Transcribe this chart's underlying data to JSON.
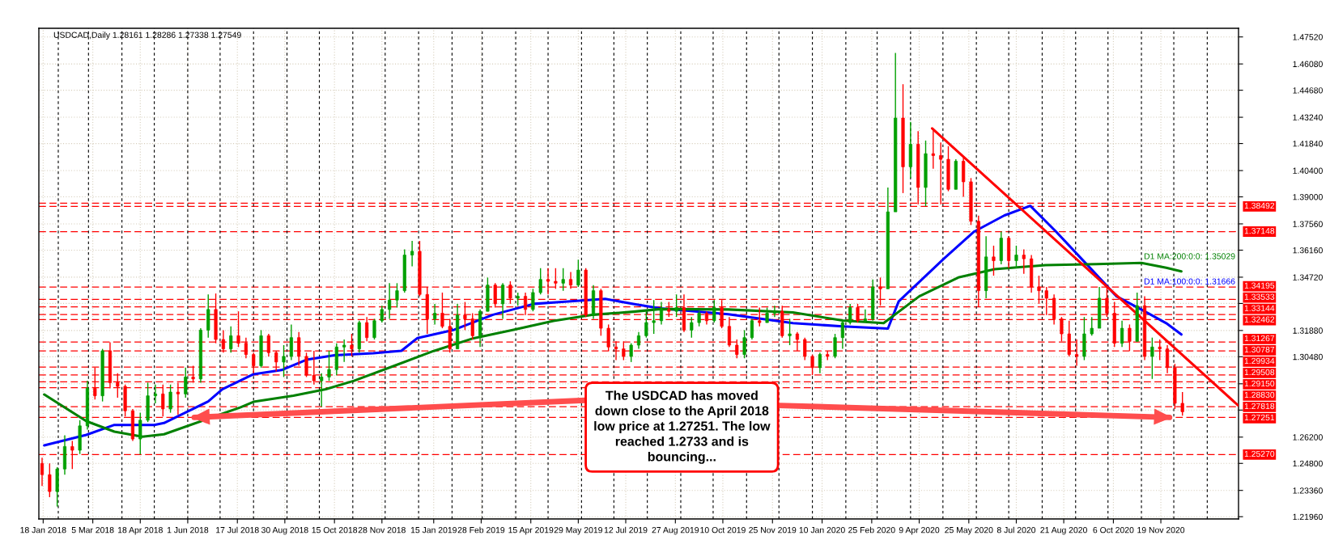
{
  "chart_data": {
    "type": "candlestick",
    "title": "USDCAD,Daily 1.28161 1.28286 1.27338 1.27549",
    "x": [
      "2018-01-17",
      "2018-01-24",
      "2018-01-31",
      "2018-02-07",
      "2018-02-14",
      "2018-02-21",
      "2018-02-28",
      "2018-03-07",
      "2018-03-14",
      "2018-03-21",
      "2018-03-28",
      "2018-04-04",
      "2018-04-11",
      "2018-04-18",
      "2018-04-25",
      "2018-05-02",
      "2018-05-09",
      "2018-05-16",
      "2018-05-23",
      "2018-05-30",
      "2018-06-06",
      "2018-06-13",
      "2018-06-20",
      "2018-06-27",
      "2018-07-04",
      "2018-07-11",
      "2018-07-18",
      "2018-07-25",
      "2018-08-01",
      "2018-08-08",
      "2018-08-15",
      "2018-08-22",
      "2018-08-29",
      "2018-09-05",
      "2018-09-12",
      "2018-09-19",
      "2018-09-26",
      "2018-10-03",
      "2018-10-10",
      "2018-10-17",
      "2018-10-24",
      "2018-10-31",
      "2018-11-07",
      "2018-11-14",
      "2018-11-21",
      "2018-11-28",
      "2018-12-05",
      "2018-12-12",
      "2018-12-19",
      "2018-12-26",
      "2019-01-02",
      "2019-01-09",
      "2019-01-16",
      "2019-01-23",
      "2019-01-30",
      "2019-02-06",
      "2019-02-13",
      "2019-02-20",
      "2019-02-27",
      "2019-03-06",
      "2019-03-13",
      "2019-03-20",
      "2019-03-27",
      "2019-04-03",
      "2019-04-10",
      "2019-04-17",
      "2019-04-24",
      "2019-05-01",
      "2019-05-08",
      "2019-05-15",
      "2019-05-22",
      "2019-05-29",
      "2019-06-05",
      "2019-06-12",
      "2019-06-19",
      "2019-06-26",
      "2019-07-03",
      "2019-07-10",
      "2019-07-17",
      "2019-07-24",
      "2019-07-31",
      "2019-08-07",
      "2019-08-14",
      "2019-08-21",
      "2019-08-28",
      "2019-09-04",
      "2019-09-11",
      "2019-09-18",
      "2019-09-25",
      "2019-10-02",
      "2019-10-09",
      "2019-10-16",
      "2019-10-23",
      "2019-10-30",
      "2019-11-06",
      "2019-11-13",
      "2019-11-20",
      "2019-11-27",
      "2019-12-04",
      "2019-12-11",
      "2019-12-18",
      "2019-12-25",
      "2020-01-01",
      "2020-01-08",
      "2020-01-15",
      "2020-01-22",
      "2020-01-29",
      "2020-02-05",
      "2020-02-12",
      "2020-02-19",
      "2020-02-26",
      "2020-03-04",
      "2020-03-11",
      "2020-03-18",
      "2020-03-25",
      "2020-04-01",
      "2020-04-08",
      "2020-04-15",
      "2020-04-22",
      "2020-04-29",
      "2020-05-06",
      "2020-05-13",
      "2020-05-20",
      "2020-05-27",
      "2020-06-03",
      "2020-06-10",
      "2020-06-17",
      "2020-06-24",
      "2020-07-01",
      "2020-07-08",
      "2020-07-15",
      "2020-07-22",
      "2020-07-29",
      "2020-08-05",
      "2020-08-12",
      "2020-08-19",
      "2020-08-26",
      "2020-09-02",
      "2020-09-09",
      "2020-09-16",
      "2020-09-23",
      "2020-09-30",
      "2020-10-07",
      "2020-10-14",
      "2020-10-21",
      "2020-10-28",
      "2020-11-04",
      "2020-11-11",
      "2020-11-18",
      "2020-11-25",
      "2020-12-02",
      "2020-12-09"
    ],
    "ohlc": [
      [
        1.248,
        1.251,
        1.236,
        1.242
      ],
      [
        1.242,
        1.248,
        1.23,
        1.233
      ],
      [
        1.233,
        1.246,
        1.225,
        1.245
      ],
      [
        1.245,
        1.263,
        1.242,
        1.257
      ],
      [
        1.257,
        1.26,
        1.245,
        1.255
      ],
      [
        1.255,
        1.271,
        1.253,
        1.268
      ],
      [
        1.268,
        1.292,
        1.266,
        1.288
      ],
      [
        1.288,
        1.299,
        1.282,
        1.284
      ],
      [
        1.284,
        1.309,
        1.281,
        1.308
      ],
      [
        1.308,
        1.3125,
        1.288,
        1.291
      ],
      [
        1.291,
        1.296,
        1.283,
        1.289
      ],
      [
        1.289,
        1.29,
        1.273,
        1.276
      ],
      [
        1.276,
        1.277,
        1.26,
        1.261
      ],
      [
        1.261,
        1.275,
        1.2527,
        1.271
      ],
      [
        1.271,
        1.291,
        1.27,
        1.284
      ],
      [
        1.284,
        1.29,
        1.28,
        1.285
      ],
      [
        1.285,
        1.29,
        1.273,
        1.277
      ],
      [
        1.277,
        1.29,
        1.275,
        1.286
      ],
      [
        1.286,
        1.291,
        1.274,
        1.285
      ],
      [
        1.285,
        1.299,
        1.283,
        1.294
      ],
      [
        1.294,
        1.3,
        1.291,
        1.293
      ],
      [
        1.293,
        1.32,
        1.291,
        1.319
      ],
      [
        1.319,
        1.338,
        1.315,
        1.33
      ],
      [
        1.33,
        1.3385,
        1.312,
        1.314
      ],
      [
        1.314,
        1.319,
        1.307,
        1.309
      ],
      [
        1.309,
        1.321,
        1.307,
        1.316
      ],
      [
        1.316,
        1.329,
        1.31,
        1.312
      ],
      [
        1.312,
        1.315,
        1.304,
        1.306
      ],
      [
        1.306,
        1.307,
        1.296,
        1.3
      ],
      [
        1.3,
        1.319,
        1.299,
        1.316
      ],
      [
        1.316,
        1.317,
        1.305,
        1.307
      ],
      [
        1.307,
        1.308,
        1.297,
        1.302
      ],
      [
        1.302,
        1.311,
        1.294,
        1.305
      ],
      [
        1.305,
        1.322,
        1.303,
        1.315
      ],
      [
        1.315,
        1.318,
        1.3,
        1.305
      ],
      [
        1.305,
        1.307,
        1.294,
        1.295
      ],
      [
        1.295,
        1.308,
        1.29,
        1.292
      ],
      [
        1.292,
        1.296,
        1.2782,
        1.294
      ],
      [
        1.294,
        1.308,
        1.292,
        1.298
      ],
      [
        1.298,
        1.312,
        1.295,
        1.31
      ],
      [
        1.31,
        1.314,
        1.302,
        1.311
      ],
      [
        1.311,
        1.317,
        1.305,
        1.309
      ],
      [
        1.309,
        1.324,
        1.307,
        1.323
      ],
      [
        1.323,
        1.326,
        1.313,
        1.315
      ],
      [
        1.315,
        1.325,
        1.314,
        1.324
      ],
      [
        1.324,
        1.332,
        1.323,
        1.33
      ],
      [
        1.33,
        1.344,
        1.325,
        1.335
      ],
      [
        1.335,
        1.344,
        1.331,
        1.34
      ],
      [
        1.34,
        1.362,
        1.339,
        1.359
      ],
      [
        1.359,
        1.3665,
        1.353,
        1.361
      ],
      [
        1.361,
        1.3665,
        1.337,
        1.338
      ],
      [
        1.338,
        1.342,
        1.317,
        1.325
      ],
      [
        1.325,
        1.333,
        1.322,
        1.328
      ],
      [
        1.328,
        1.339,
        1.32,
        1.321
      ],
      [
        1.321,
        1.325,
        1.307,
        1.309
      ],
      [
        1.309,
        1.333,
        1.309,
        1.327
      ],
      [
        1.327,
        1.334,
        1.319,
        1.325
      ],
      [
        1.325,
        1.328,
        1.314,
        1.316
      ],
      [
        1.316,
        1.33,
        1.31,
        1.329
      ],
      [
        1.329,
        1.347,
        1.329,
        1.343
      ],
      [
        1.343,
        1.344,
        1.331,
        1.333
      ],
      [
        1.333,
        1.344,
        1.325,
        1.343
      ],
      [
        1.343,
        1.345,
        1.333,
        1.336
      ],
      [
        1.336,
        1.339,
        1.332,
        1.337
      ],
      [
        1.337,
        1.339,
        1.327,
        1.33
      ],
      [
        1.33,
        1.341,
        1.329,
        1.339
      ],
      [
        1.339,
        1.352,
        1.338,
        1.346
      ],
      [
        1.346,
        1.352,
        1.338,
        1.345
      ],
      [
        1.345,
        1.352,
        1.341,
        1.344
      ],
      [
        1.344,
        1.352,
        1.34,
        1.346
      ],
      [
        1.346,
        1.35,
        1.341,
        1.343
      ],
      [
        1.343,
        1.3565,
        1.342,
        1.351
      ],
      [
        1.351,
        1.352,
        1.326,
        1.327
      ],
      [
        1.327,
        1.343,
        1.325,
        1.34
      ],
      [
        1.34,
        1.341,
        1.316,
        1.32
      ],
      [
        1.32,
        1.322,
        1.308,
        1.31
      ],
      [
        1.31,
        1.313,
        1.303,
        1.309
      ],
      [
        1.309,
        1.313,
        1.303,
        1.305
      ],
      [
        1.305,
        1.312,
        1.302,
        1.311
      ],
      [
        1.311,
        1.318,
        1.309,
        1.316
      ],
      [
        1.316,
        1.329,
        1.315,
        1.323
      ],
      [
        1.323,
        1.335,
        1.317,
        1.324
      ],
      [
        1.324,
        1.334,
        1.322,
        1.33
      ],
      [
        1.33,
        1.334,
        1.326,
        1.329
      ],
      [
        1.329,
        1.338,
        1.326,
        1.331
      ],
      [
        1.331,
        1.338,
        1.318,
        1.319
      ],
      [
        1.319,
        1.326,
        1.315,
        1.323
      ],
      [
        1.323,
        1.329,
        1.321,
        1.328
      ],
      [
        1.328,
        1.329,
        1.322,
        1.324
      ],
      [
        1.324,
        1.335,
        1.323,
        1.331
      ],
      [
        1.331,
        1.335,
        1.32,
        1.321
      ],
      [
        1.321,
        1.326,
        1.31,
        1.311
      ],
      [
        1.311,
        1.314,
        1.304,
        1.306
      ],
      [
        1.306,
        1.319,
        1.304,
        1.315
      ],
      [
        1.315,
        1.325,
        1.314,
        1.324
      ],
      [
        1.324,
        1.331,
        1.321,
        1.323
      ],
      [
        1.323,
        1.331,
        1.323,
        1.328
      ],
      [
        1.328,
        1.332,
        1.326,
        1.329
      ],
      [
        1.329,
        1.332,
        1.315,
        1.316
      ],
      [
        1.316,
        1.325,
        1.311,
        1.317
      ],
      [
        1.317,
        1.318,
        1.308,
        1.314
      ],
      [
        1.314,
        1.315,
        1.303,
        1.305
      ],
      [
        1.305,
        1.306,
        1.295,
        1.299
      ],
      [
        1.299,
        1.307,
        1.296,
        1.306
      ],
      [
        1.306,
        1.308,
        1.303,
        1.305
      ],
      [
        1.305,
        1.317,
        1.304,
        1.315
      ],
      [
        1.315,
        1.324,
        1.309,
        1.323
      ],
      [
        1.323,
        1.333,
        1.322,
        1.331
      ],
      [
        1.331,
        1.333,
        1.323,
        1.324
      ],
      [
        1.324,
        1.33,
        1.323,
        1.325
      ],
      [
        1.325,
        1.346,
        1.324,
        1.342
      ],
      [
        1.342,
        1.347,
        1.332,
        1.341
      ],
      [
        1.341,
        1.395,
        1.341,
        1.382
      ],
      [
        1.382,
        1.4667,
        1.382,
        1.432
      ],
      [
        1.432,
        1.45,
        1.392,
        1.406
      ],
      [
        1.406,
        1.43,
        1.4,
        1.418
      ],
      [
        1.418,
        1.425,
        1.386,
        1.395
      ],
      [
        1.395,
        1.42,
        1.385,
        1.413
      ],
      [
        1.413,
        1.4265,
        1.405,
        1.412
      ],
      [
        1.412,
        1.419,
        1.386,
        1.41
      ],
      [
        1.41,
        1.417,
        1.393,
        1.394
      ],
      [
        1.394,
        1.41,
        1.394,
        1.409
      ],
      [
        1.409,
        1.411,
        1.39,
        1.398
      ],
      [
        1.398,
        1.4,
        1.375,
        1.377
      ],
      [
        1.377,
        1.38,
        1.3315,
        1.34
      ],
      [
        1.34,
        1.369,
        1.336,
        1.358
      ],
      [
        1.358,
        1.364,
        1.348,
        1.356
      ],
      [
        1.356,
        1.3715,
        1.354,
        1.368
      ],
      [
        1.368,
        1.369,
        1.352,
        1.356
      ],
      [
        1.356,
        1.364,
        1.352,
        1.359
      ],
      [
        1.359,
        1.362,
        1.349,
        1.357
      ],
      [
        1.357,
        1.359,
        1.339,
        1.342
      ],
      [
        1.342,
        1.348,
        1.333,
        1.34
      ],
      [
        1.34,
        1.342,
        1.327,
        1.336
      ],
      [
        1.336,
        1.338,
        1.322,
        1.325
      ],
      [
        1.325,
        1.326,
        1.313,
        1.317
      ],
      [
        1.317,
        1.324,
        1.305,
        1.306
      ],
      [
        1.306,
        1.314,
        1.3,
        1.305
      ],
      [
        1.305,
        1.326,
        1.303,
        1.317
      ],
      [
        1.317,
        1.326,
        1.316,
        1.32
      ],
      [
        1.32,
        1.342,
        1.32,
        1.336
      ],
      [
        1.336,
        1.342,
        1.326,
        1.328
      ],
      [
        1.328,
        1.334,
        1.31,
        1.312
      ],
      [
        1.312,
        1.324,
        1.31,
        1.32
      ],
      [
        1.32,
        1.322,
        1.308,
        1.313
      ],
      [
        1.313,
        1.339,
        1.313,
        1.332
      ],
      [
        1.332,
        1.337,
        1.303,
        1.305
      ],
      [
        1.305,
        1.315,
        1.293,
        1.31
      ],
      [
        1.31,
        1.314,
        1.303,
        1.309
      ],
      [
        1.309,
        1.311,
        1.296,
        1.299
      ],
      [
        1.299,
        1.301,
        1.277,
        1.28
      ],
      [
        1.28,
        1.286,
        1.2734,
        1.2755
      ]
    ],
    "colors": [
      "#ff0000",
      "#ff0000",
      "#00a000",
      "#00a000",
      "#ff0000",
      "#00a000",
      "#00a000",
      "#ff0000",
      "#00a000",
      "#ff0000",
      "#ff0000",
      "#ff0000",
      "#ff0000",
      "#00a000",
      "#00a000",
      "#00a000",
      "#ff0000",
      "#00a000",
      "#ff0000",
      "#00a000",
      "#ff0000",
      "#00a000",
      "#00a000",
      "#ff0000",
      "#ff0000",
      "#00a000",
      "#ff0000",
      "#ff0000",
      "#ff0000",
      "#00a000",
      "#ff0000",
      "#ff0000",
      "#00a000",
      "#00a000",
      "#ff0000",
      "#ff0000",
      "#ff0000",
      "#00a000",
      "#00a000",
      "#00a000",
      "#00a000",
      "#ff0000",
      "#00a000",
      "#ff0000",
      "#00a000",
      "#00a000",
      "#00a000",
      "#00a000",
      "#00a000",
      "#00a000",
      "#ff0000",
      "#ff0000",
      "#00a000",
      "#ff0000",
      "#ff0000",
      "#00a000",
      "#ff0000",
      "#ff0000",
      "#00a000",
      "#00a000",
      "#ff0000",
      "#00a000",
      "#ff0000",
      "#00a000",
      "#ff0000",
      "#00a000",
      "#00a000",
      "#ff0000",
      "#ff0000",
      "#00a000",
      "#ff0000",
      "#00a000",
      "#ff0000",
      "#00a000",
      "#ff0000",
      "#ff0000",
      "#ff0000",
      "#ff0000",
      "#00a000",
      "#00a000",
      "#00a000",
      "#00a000",
      "#00a000",
      "#ff0000",
      "#00a000",
      "#ff0000",
      "#00a000",
      "#00a000",
      "#ff0000",
      "#00a000",
      "#ff0000",
      "#ff0000",
      "#ff0000",
      "#00a000",
      "#00a000",
      "#ff0000",
      "#00a000",
      "#00a000",
      "#ff0000",
      "#00a000",
      "#ff0000",
      "#ff0000",
      "#ff0000",
      "#00a000",
      "#ff0000",
      "#00a000",
      "#00a000",
      "#00a000",
      "#ff0000",
      "#00a000",
      "#00a000",
      "#ff0000",
      "#00a000",
      "#00a000",
      "#ff0000",
      "#00a000",
      "#ff0000",
      "#00a000",
      "#ff0000",
      "#ff0000",
      "#ff0000",
      "#00a000",
      "#ff0000",
      "#ff0000",
      "#ff0000",
      "#00a000",
      "#ff0000",
      "#00a000",
      "#ff0000",
      "#00a000",
      "#ff0000",
      "#ff0000",
      "#ff0000",
      "#ff0000",
      "#ff0000",
      "#ff0000",
      "#ff0000",
      "#ff0000",
      "#00a000",
      "#00a000",
      "#00a000",
      "#ff0000",
      "#ff0000",
      "#00a000",
      "#ff0000",
      "#00a000",
      "#ff0000",
      "#00a000",
      "#ff0000",
      "#ff0000",
      "#ff0000",
      "#ff0000"
    ],
    "series": [
      {
        "name": "D1 MA:100:0:0: 1.31666",
        "type": "line",
        "color": "#0000ff",
        "x": [
          "2018-01-19",
          "2018-02-27",
          "2018-03-25",
          "2018-05-01",
          "2018-05-10",
          "2018-06-20",
          "2018-07-03",
          "2018-08-01",
          "2018-08-27",
          "2018-09-19",
          "2018-10-15",
          "2018-11-20",
          "2018-12-16",
          "2018-12-31",
          "2019-02-03",
          "2019-03-11",
          "2019-04-18",
          "2019-05-14",
          "2019-06-23",
          "2019-07-19",
          "2019-08-13",
          "2019-10-15",
          "2019-12-14",
          "2020-01-29",
          "2020-03-11",
          "2020-03-21",
          "2020-05-02",
          "2020-05-30",
          "2020-06-27",
          "2020-07-21",
          "2020-08-14",
          "2020-09-11",
          "2020-10-09",
          "2020-11-06",
          "2020-11-24",
          "2020-12-08"
        ],
        "values": [
          1.2576,
          1.2632,
          1.2685,
          1.2685,
          1.2695,
          1.281,
          1.2875,
          1.2955,
          1.2977,
          1.3032,
          1.3056,
          1.3067,
          1.308,
          1.3148,
          1.3192,
          1.3272,
          1.333,
          1.334,
          1.3356,
          1.333,
          1.3306,
          1.3275,
          1.3227,
          1.321,
          1.3198,
          1.3343,
          1.3571,
          1.3715,
          1.3801,
          1.3852,
          1.3714,
          1.3542,
          1.337,
          1.3284,
          1.3227,
          1.31666
        ]
      },
      {
        "name": "D1 MA:200:0:0: 1.35029",
        "type": "line",
        "color": "#008000",
        "x": [
          "2018-01-19",
          "2018-02-27",
          "2018-03-25",
          "2018-04-20",
          "2018-05-10",
          "2018-07-20",
          "2018-08-01",
          "2018-09-07",
          "2018-10-07",
          "2018-11-02",
          "2018-12-09",
          "2019-01-15",
          "2019-02-21",
          "2019-03-30",
          "2019-05-06",
          "2019-06-12",
          "2019-07-19",
          "2019-08-13",
          "2019-10-15",
          "2019-12-14",
          "2020-01-29",
          "2020-03-07",
          "2020-04-09",
          "2020-05-16",
          "2020-06-18",
          "2020-08-04",
          "2020-09-20",
          "2020-11-01",
          "2020-11-24",
          "2020-12-08"
        ],
        "values": [
          1.2847,
          1.2705,
          1.2649,
          1.2622,
          1.2635,
          1.2779,
          1.2808,
          1.2841,
          1.2875,
          1.292,
          1.2999,
          1.3079,
          1.3147,
          1.3192,
          1.3239,
          1.3272,
          1.3288,
          1.3302,
          1.33,
          1.3284,
          1.3241,
          1.3227,
          1.337,
          1.3472,
          1.3515,
          1.3536,
          1.3542,
          1.3548,
          1.3522,
          1.35029
        ]
      },
      {
        "type": "line",
        "color": "#ff0000",
        "x": [
          "2020-04-21",
          "2021-01-30"
        ],
        "values": [
          1.4265,
          1.2787
        ]
      }
    ],
    "xlim": [
      "2018-01-14",
      "2021-01-30"
    ],
    "xticks": [
      {
        "value": "2018-01-18",
        "label": "18 Jan 2018"
      },
      {
        "value": "2018-03-05",
        "label": "5 Mar 2018"
      },
      {
        "value": "2018-04-18",
        "label": "18 Apr 2018"
      },
      {
        "value": "2018-06-01",
        "label": "1 Jun 2018"
      },
      {
        "value": "2018-07-17",
        "label": "17 Jul 2018"
      },
      {
        "value": "2018-08-30",
        "label": "30 Aug 2018"
      },
      {
        "value": "2018-10-15",
        "label": "15 Oct 2018"
      },
      {
        "value": "2018-11-28",
        "label": "28 Nov 2018"
      },
      {
        "value": "2019-01-15",
        "label": "15 Jan 2019"
      },
      {
        "value": "2019-02-28",
        "label": "28 Feb 2019"
      },
      {
        "value": "2019-04-15",
        "label": "15 Apr 2019"
      },
      {
        "value": "2019-05-29",
        "label": "29 May 2019"
      },
      {
        "value": "2019-07-12",
        "label": "12 Jul 2019"
      },
      {
        "value": "2019-08-27",
        "label": "27 Aug 2019"
      },
      {
        "value": "2019-10-10",
        "label": "10 Oct 2019"
      },
      {
        "value": "2019-11-25",
        "label": "25 Nov 2019"
      },
      {
        "value": "2020-01-10",
        "label": "10 Jan 2020"
      },
      {
        "value": "2020-02-25",
        "label": "25 Feb 2020"
      },
      {
        "value": "2020-04-09",
        "label": "9 Apr 2020"
      },
      {
        "value": "2020-05-25",
        "label": "25 May 2020"
      },
      {
        "value": "2020-07-08",
        "label": "8 Jul 2020"
      },
      {
        "value": "2020-08-21",
        "label": "21 Aug 2020"
      },
      {
        "value": "2020-10-06",
        "label": "6 Oct 2020"
      },
      {
        "value": "2020-11-19",
        "label": "19 Nov 2020"
      }
    ],
    "ylim": [
      1.2184,
      1.4798
    ],
    "yticks": [
      {
        "value": 1.4752,
        "label": "1.47520"
      },
      {
        "value": 1.4608,
        "label": "1.46080"
      },
      {
        "value": 1.4468,
        "label": "1.44680"
      },
      {
        "value": 1.4324,
        "label": "1.43240"
      },
      {
        "value": 1.4184,
        "label": "1.41840"
      },
      {
        "value": 1.404,
        "label": "1.40400"
      },
      {
        "value": 1.39,
        "label": "1.39000"
      },
      {
        "value": 1.3756,
        "label": "1.37560"
      },
      {
        "value": 1.3616,
        "label": "1.36160"
      },
      {
        "value": 1.3472,
        "label": "1.34720"
      },
      {
        "value": 1.3332,
        "label": null
      },
      {
        "value": 1.3188,
        "label": "1.31880"
      },
      {
        "value": 1.3048,
        "label": "1.30480"
      },
      {
        "value": 1.2904,
        "label": null
      },
      {
        "value": 1.2764,
        "label": null
      },
      {
        "value": 1.262,
        "label": "1.26200"
      },
      {
        "value": 1.248,
        "label": "1.24800"
      },
      {
        "value": 1.2336,
        "label": "1.23360"
      },
      {
        "value": 1.2196,
        "label": "1.21960"
      }
    ],
    "ref_lines": [
      {
        "axis": "y",
        "value": 1.3866,
        "label": null,
        "color": "#ff0000",
        "line_style": "dashed"
      },
      {
        "axis": "y",
        "value": 1.38492,
        "label": "1.38492",
        "color": "#ff0000",
        "line_style": "dashed"
      },
      {
        "axis": "y",
        "value": 1.37148,
        "label": "1.37148",
        "color": "#ff0000",
        "line_style": "dashed"
      },
      {
        "axis": "y",
        "value": 1.34195,
        "label": "1.34195",
        "color": "#ff0000",
        "line_style": "dashed"
      },
      {
        "axis": "y",
        "value": 1.33533,
        "label": "1.33533",
        "color": "#ff0000",
        "line_style": "dashed"
      },
      {
        "axis": "y",
        "value": 1.33144,
        "label": "1.33144",
        "color": "#ff0000",
        "line_style": "dashed"
      },
      {
        "axis": "y",
        "value": 1.3273,
        "label": null,
        "color": "#ff0000",
        "line_style": "dashed"
      },
      {
        "axis": "y",
        "value": 1.32462,
        "label": "1.32462",
        "color": "#ff0000",
        "line_style": "dashed"
      },
      {
        "axis": "y",
        "value": 1.31267,
        "label": "1.31267",
        "color": "#ff0000",
        "line_style": "dashed"
      },
      {
        "axis": "y",
        "value": 1.30787,
        "label": "1.30787",
        "color": "#ff0000",
        "line_style": "dashed"
      },
      {
        "axis": "y",
        "value": 1.29934,
        "label": "1.29934",
        "color": "#ff0000",
        "line_style": "dashed"
      },
      {
        "axis": "y",
        "value": 1.29508,
        "label": "1.29508",
        "color": "#ff0000",
        "line_style": "dashed"
      },
      {
        "axis": "y",
        "value": 1.2915,
        "label": "1.29150",
        "color": "#ff0000",
        "line_style": "dashed"
      },
      {
        "axis": "y",
        "value": 1.2883,
        "label": "1.28830",
        "color": "#ff0000",
        "line_style": "dashed"
      },
      {
        "axis": "y",
        "value": 1.27818,
        "label": "1.27818",
        "color": "#ff0000",
        "line_style": "dashed"
      },
      {
        "axis": "y",
        "value": 1.27251,
        "label": "1.27251",
        "color": "#ff0000",
        "line_style": "dashed"
      },
      {
        "axis": "y",
        "value": 1.2527,
        "label": "1.25270",
        "color": "#ff0000",
        "line_style": "dashed"
      },
      {
        "axis": "x",
        "value": "2018-02-01",
        "color": "#000000",
        "line_style": "dashed"
      },
      {
        "axis": "x",
        "value": "2018-03-01",
        "color": "#000000",
        "line_style": "dashed"
      },
      {
        "axis": "x",
        "value": "2018-04-01",
        "color": "#000000",
        "line_style": "dashed"
      },
      {
        "axis": "x",
        "value": "2018-05-01",
        "color": "#000000",
        "line_style": "dashed"
      },
      {
        "axis": "x",
        "value": "2018-06-01",
        "color": "#000000",
        "line_style": "dashed"
      },
      {
        "axis": "x",
        "value": "2018-07-01",
        "color": "#000000",
        "line_style": "dashed"
      },
      {
        "axis": "x",
        "value": "2018-08-01",
        "color": "#000000",
        "line_style": "dashed"
      },
      {
        "axis": "x",
        "value": "2018-09-01",
        "color": "#000000",
        "line_style": "dashed"
      },
      {
        "axis": "x",
        "value": "2018-10-01",
        "color": "#000000",
        "line_style": "dashed"
      },
      {
        "axis": "x",
        "value": "2018-11-01",
        "color": "#000000",
        "line_style": "dashed"
      },
      {
        "axis": "x",
        "value": "2018-12-01",
        "color": "#000000",
        "line_style": "dashed"
      },
      {
        "axis": "x",
        "value": "2019-01-01",
        "color": "#000000",
        "line_style": "dashed"
      },
      {
        "axis": "x",
        "value": "2019-02-01",
        "color": "#000000",
        "line_style": "dashed"
      },
      {
        "axis": "x",
        "value": "2019-03-01",
        "color": "#000000",
        "line_style": "dashed"
      },
      {
        "axis": "x",
        "value": "2019-04-01",
        "color": "#000000",
        "line_style": "dashed"
      },
      {
        "axis": "x",
        "value": "2019-05-01",
        "color": "#000000",
        "line_style": "dashed"
      },
      {
        "axis": "x",
        "value": "2019-06-01",
        "color": "#000000",
        "line_style": "dashed"
      },
      {
        "axis": "x",
        "value": "2019-07-01",
        "color": "#000000",
        "line_style": "dashed"
      },
      {
        "axis": "x",
        "value": "2019-08-01",
        "color": "#000000",
        "line_style": "dashed"
      },
      {
        "axis": "x",
        "value": "2019-09-01",
        "color": "#000000",
        "line_style": "dashed"
      },
      {
        "axis": "x",
        "value": "2019-10-01",
        "color": "#000000",
        "line_style": "dashed"
      },
      {
        "axis": "x",
        "value": "2019-11-01",
        "color": "#000000",
        "line_style": "dashed"
      },
      {
        "axis": "x",
        "value": "2019-12-01",
        "color": "#000000",
        "line_style": "dashed"
      },
      {
        "axis": "x",
        "value": "2020-01-01",
        "color": "#000000",
        "line_style": "dashed"
      },
      {
        "axis": "x",
        "value": "2020-02-01",
        "color": "#000000",
        "line_style": "dashed"
      },
      {
        "axis": "x",
        "value": "2020-03-01",
        "color": "#000000",
        "line_style": "dashed"
      },
      {
        "axis": "x",
        "value": "2020-04-01",
        "color": "#000000",
        "line_style": "dashed"
      },
      {
        "axis": "x",
        "value": "2020-05-01",
        "color": "#000000",
        "line_style": "dashed"
      },
      {
        "axis": "x",
        "value": "2020-06-01",
        "color": "#000000",
        "line_style": "dashed"
      },
      {
        "axis": "x",
        "value": "2020-07-01",
        "color": "#000000",
        "line_style": "dashed"
      },
      {
        "axis": "x",
        "value": "2020-08-01",
        "color": "#000000",
        "line_style": "dashed"
      },
      {
        "axis": "x",
        "value": "2020-09-01",
        "color": "#000000",
        "line_style": "dashed"
      },
      {
        "axis": "x",
        "value": "2020-10-01",
        "color": "#000000",
        "line_style": "dashed"
      },
      {
        "axis": "x",
        "value": "2020-11-01",
        "color": "#000000",
        "line_style": "dashed"
      },
      {
        "axis": "x",
        "value": "2020-12-01",
        "color": "#000000",
        "line_style": "dashed"
      },
      {
        "axis": "x",
        "value": "2021-01-01",
        "color": "#000000",
        "line_style": "dashed"
      }
    ],
    "annotations": [
      {
        "text": "The USDCAD has moved\ndown close to the April 2018\nlow price at 1.27251. The low\nreached 1.2733 and is\nbouncing...",
        "x": "2020-11-27",
        "y": 1.2725
      }
    ],
    "grid": true,
    "legend": false
  }
}
